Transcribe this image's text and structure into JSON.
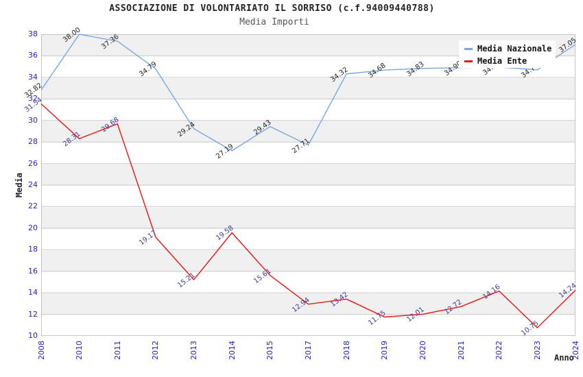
{
  "title": "ASSOCIAZIONE DI VOLONTARIATO IL SORRISO (c.f.94009440788)",
  "subtitle": "Media Importi",
  "y_axis_title": "Media",
  "x_axis_title": "Anno",
  "legend": {
    "position": "top-right",
    "items": [
      {
        "label": "Media Nazionale",
        "color": "#76a7e4"
      },
      {
        "label": "Media Ente",
        "color": "#ee1111"
      }
    ]
  },
  "colors": {
    "title": "#222222",
    "subtitle": "#555555",
    "tick_label": "#1f1fd1",
    "stripe": "#f0f0f0",
    "grid_line": "#cccccc",
    "plot_border": "#c4c4c4",
    "national_line": "#76a7e4",
    "ente_line": "#ee1111",
    "national_data_label": "#222222",
    "ente_data_label": "#383896"
  },
  "chart_data": {
    "type": "line",
    "title": "ASSOCIAZIONE DI VOLONTARIATO IL SORRISO (c.f.94009440788)",
    "subtitle": "Media Importi",
    "xlabel": "Anno",
    "ylabel": "Media",
    "ylim": [
      10,
      38
    ],
    "y_ticks": [
      10,
      12,
      14,
      16,
      18,
      20,
      22,
      24,
      26,
      28,
      30,
      32,
      34,
      36,
      38
    ],
    "grid": "horizontal-stripes",
    "legend_position": "top-right",
    "categories": [
      "2008",
      "2010",
      "2011",
      "2012",
      "2013",
      "2014",
      "2015",
      "2017",
      "2018",
      "2019",
      "2020",
      "2021",
      "2022",
      "2023",
      "2024"
    ],
    "series": [
      {
        "name": "Media Nazionale",
        "color": "#76a7e4",
        "label_color": "#222222",
        "values": [
          32.82,
          38.0,
          37.36,
          34.79,
          29.24,
          27.19,
          29.43,
          27.71,
          34.32,
          34.68,
          34.83,
          34.9,
          34.95,
          34.7,
          37.05
        ],
        "labels": [
          "32.82",
          "38.00",
          "37.36",
          "34.79",
          "29.24",
          "27.19",
          "29.43",
          "27.71",
          "34.32",
          "34.68",
          "34.83",
          "34.90",
          "34.95",
          "34.70",
          "37.05"
        ]
      },
      {
        "name": "Media Ente",
        "color": "#ee1111",
        "label_color": "#383896",
        "values": [
          31.54,
          28.31,
          29.68,
          19.17,
          15.21,
          19.58,
          15.61,
          12.94,
          13.42,
          11.75,
          12.01,
          12.72,
          14.16,
          10.75,
          14.24
        ],
        "labels": [
          "31.54",
          "28.31",
          "29.68",
          "19.17",
          "15.21",
          "19.58",
          "15.61",
          "12.94",
          "13.42",
          "11.75",
          "12.01",
          "12.72",
          "14.16",
          "10.75",
          "14.24"
        ]
      }
    ]
  }
}
